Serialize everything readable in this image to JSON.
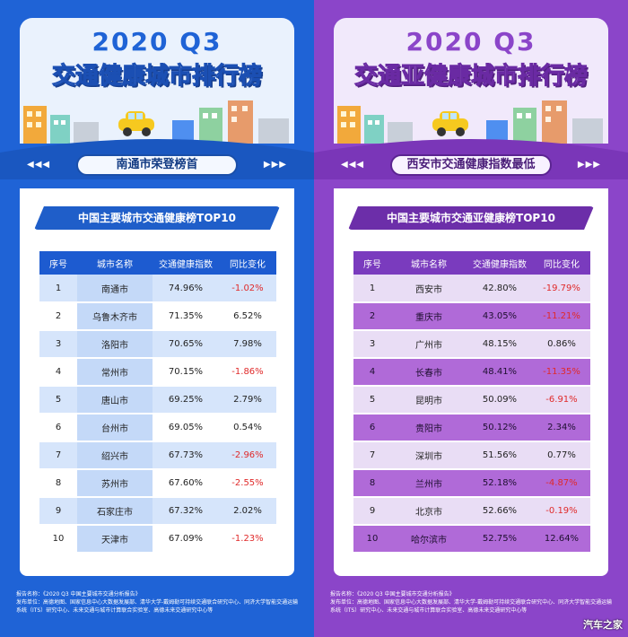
{
  "left": {
    "year": "2020 Q3",
    "title": "交通健康城市排行榜",
    "banner": "南通市荣登榜首",
    "arrows_left": "◀◀◀",
    "arrows_right": "▶▶▶",
    "subtitle": "中国主要城市交通健康榜TOP10",
    "headers": {
      "rank": "序号",
      "city": "城市名称",
      "index": "交通健康指数",
      "change": "同比变化"
    },
    "rows": [
      {
        "rank": "1",
        "city": "南通市",
        "index": "74.96%",
        "change": "-1.02%"
      },
      {
        "rank": "2",
        "city": "乌鲁木齐市",
        "index": "71.35%",
        "change": "6.52%"
      },
      {
        "rank": "3",
        "city": "洛阳市",
        "index": "70.65%",
        "change": "7.98%"
      },
      {
        "rank": "4",
        "city": "常州市",
        "index": "70.15%",
        "change": "-1.86%"
      },
      {
        "rank": "5",
        "city": "唐山市",
        "index": "69.25%",
        "change": "2.79%"
      },
      {
        "rank": "6",
        "city": "台州市",
        "index": "69.05%",
        "change": "0.54%"
      },
      {
        "rank": "7",
        "city": "绍兴市",
        "index": "67.73%",
        "change": "-2.96%"
      },
      {
        "rank": "8",
        "city": "苏州市",
        "index": "67.60%",
        "change": "-2.55%"
      },
      {
        "rank": "9",
        "city": "石家庄市",
        "index": "67.32%",
        "change": "2.02%"
      },
      {
        "rank": "10",
        "city": "天津市",
        "index": "67.09%",
        "change": "-1.23%"
      }
    ],
    "footer_report": "报告名称：《2020 Q3 中国主要城市交通分析报告》",
    "footer_orgs": "发布单位：高德地图、国家信息中心大数据发展部、清华大学-戴姆勒可持续交通联合研究中心、同济大学智能交通运输系统（ITS）研究中心、未来交通与城市计算联合实验室、高德未来交通研究中心等"
  },
  "right": {
    "year": "2020 Q3",
    "title": "交通亚健康城市排行榜",
    "banner": "西安市交通健康指数最低",
    "arrows_left": "◀◀◀",
    "arrows_right": "▶▶▶",
    "subtitle": "中国主要城市交通亚健康榜TOP10",
    "headers": {
      "rank": "序号",
      "city": "城市名称",
      "index": "交通健康指数",
      "change": "同比变化"
    },
    "rows": [
      {
        "rank": "1",
        "city": "西安市",
        "index": "42.80%",
        "change": "-19.79%"
      },
      {
        "rank": "2",
        "city": "重庆市",
        "index": "43.05%",
        "change": "-11.21%"
      },
      {
        "rank": "3",
        "city": "广州市",
        "index": "48.15%",
        "change": "0.86%"
      },
      {
        "rank": "4",
        "city": "长春市",
        "index": "48.41%",
        "change": "-11.35%"
      },
      {
        "rank": "5",
        "city": "昆明市",
        "index": "50.09%",
        "change": "-6.91%"
      },
      {
        "rank": "6",
        "city": "贵阳市",
        "index": "50.12%",
        "change": "2.34%"
      },
      {
        "rank": "7",
        "city": "深圳市",
        "index": "51.56%",
        "change": "0.77%"
      },
      {
        "rank": "8",
        "city": "兰州市",
        "index": "52.18%",
        "change": "-4.87%"
      },
      {
        "rank": "9",
        "city": "北京市",
        "index": "52.66%",
        "change": "-0.19%"
      },
      {
        "rank": "10",
        "city": "哈尔滨市",
        "index": "52.75%",
        "change": "12.64%"
      }
    ],
    "footer_report": "报告名称：《2020 Q3 中国主要城市交通分析报告》",
    "footer_orgs": "发布单位：高德地图、国家信息中心大数据发展部、清华大学-戴姆勒可持续交通联合研究中心、同济大学智能交通运输系统（ITS）研究中心、未来交通与城市计算联合实验室、高德未来交通研究中心等"
  },
  "watermark": "汽车之家",
  "colors": {
    "blue": "#1f63d6",
    "purple": "#8b45c9",
    "negative": "#e02a2a"
  }
}
